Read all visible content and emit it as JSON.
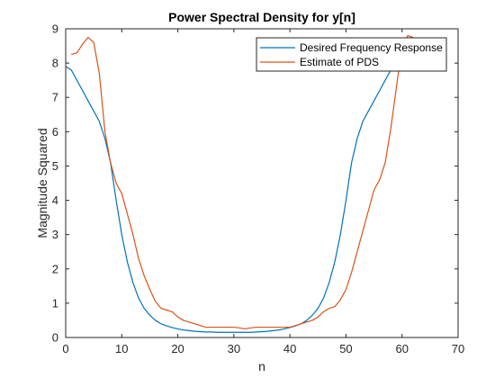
{
  "chart_data": {
    "type": "line",
    "title": "Power Spectral Density for y[n]",
    "xlabel": "n",
    "ylabel": "Magnitude Squared",
    "xlim": [
      0,
      70
    ],
    "ylim": [
      0,
      9
    ],
    "xticks": [
      0,
      10,
      20,
      30,
      40,
      50,
      60,
      70
    ],
    "yticks": [
      0,
      1,
      2,
      3,
      4,
      5,
      6,
      7,
      8,
      9
    ],
    "grid": false,
    "legend_position": "top-right",
    "series": [
      {
        "name": "Desired Frequency Response",
        "color": "#0072BD",
        "x": [
          0,
          1,
          2,
          3,
          4,
          5,
          6,
          7,
          8,
          9,
          10,
          11,
          12,
          13,
          14,
          15,
          16,
          17,
          18,
          19,
          20,
          21,
          22,
          23,
          24,
          25,
          26,
          27,
          28,
          29,
          30,
          31,
          32,
          33,
          34,
          35,
          36,
          37,
          38,
          39,
          40,
          41,
          42,
          43,
          44,
          45,
          46,
          47,
          48,
          49,
          50,
          51,
          52,
          53,
          54,
          55,
          56,
          57,
          58,
          59,
          60,
          61,
          62,
          63,
          64
        ],
        "y": [
          7.9,
          7.8,
          7.5,
          7.2,
          6.9,
          6.6,
          6.3,
          5.8,
          5.1,
          4.0,
          3.0,
          2.2,
          1.6,
          1.15,
          0.85,
          0.65,
          0.5,
          0.4,
          0.34,
          0.29,
          0.25,
          0.22,
          0.2,
          0.18,
          0.17,
          0.16,
          0.16,
          0.15,
          0.15,
          0.15,
          0.15,
          0.15,
          0.15,
          0.15,
          0.16,
          0.17,
          0.18,
          0.2,
          0.22,
          0.25,
          0.29,
          0.34,
          0.4,
          0.5,
          0.65,
          0.85,
          1.15,
          1.6,
          2.2,
          3.0,
          4.0,
          5.1,
          5.8,
          6.3,
          6.6,
          6.9,
          7.2,
          7.5,
          7.8,
          7.9,
          7.9,
          7.9,
          7.9,
          7.9,
          7.9
        ]
      },
      {
        "name": "Estimate of PDS",
        "color": "#D95319",
        "x": [
          1,
          2,
          3,
          4,
          5,
          6,
          7,
          8,
          9,
          10,
          11,
          12,
          13,
          14,
          15,
          16,
          17,
          18,
          19,
          20,
          21,
          22,
          23,
          24,
          25,
          26,
          27,
          28,
          29,
          30,
          31,
          32,
          33,
          34,
          35,
          36,
          37,
          38,
          39,
          40,
          41,
          42,
          43,
          44,
          45,
          46,
          47,
          48,
          49,
          50,
          51,
          52,
          53,
          54,
          55,
          56,
          57,
          58,
          59,
          60,
          61,
          62
        ],
        "y": [
          8.25,
          8.3,
          8.55,
          8.75,
          8.6,
          7.7,
          6.0,
          5.1,
          4.5,
          4.2,
          3.6,
          3.0,
          2.3,
          1.8,
          1.4,
          1.05,
          0.85,
          0.8,
          0.75,
          0.6,
          0.5,
          0.45,
          0.4,
          0.35,
          0.3,
          0.3,
          0.3,
          0.3,
          0.3,
          0.3,
          0.28,
          0.25,
          0.28,
          0.3,
          0.3,
          0.3,
          0.3,
          0.3,
          0.3,
          0.3,
          0.35,
          0.4,
          0.45,
          0.5,
          0.6,
          0.75,
          0.85,
          0.9,
          1.1,
          1.4,
          1.9,
          2.5,
          3.1,
          3.7,
          4.3,
          4.6,
          5.1,
          6.1,
          7.3,
          8.5,
          8.8,
          8.75
        ]
      }
    ]
  }
}
